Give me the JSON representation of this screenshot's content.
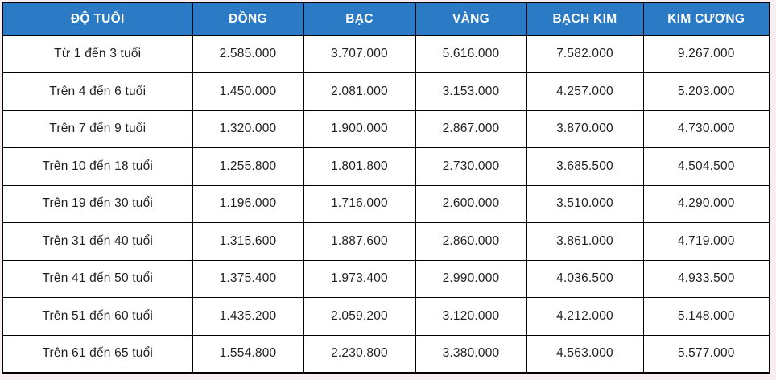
{
  "table": {
    "columns": [
      "ĐỘ TUỔI",
      "ĐỒNG",
      "BẠC",
      "VÀNG",
      "BẠCH KIM",
      "KIM CƯƠNG"
    ],
    "rows": [
      {
        "age": "Từ 1 đến 3 tuổi",
        "values": [
          "2.585.000",
          "3.707.000",
          "5.616.000",
          "7.582.000",
          "9.267.000"
        ]
      },
      {
        "age": "Trên 4 đến 6 tuổi",
        "values": [
          "1.450.000",
          "2.081.000",
          "3.153.000",
          "4.257.000",
          "5.203.000"
        ]
      },
      {
        "age": "Trên 7 đến 9 tuổi",
        "values": [
          "1.320.000",
          "1.900.000",
          "2.867.000",
          "3.870.000",
          "4.730.000"
        ]
      },
      {
        "age": "Trên 10 đến 18 tuổi",
        "values": [
          "1.255.800",
          "1.801.800",
          "2.730.000",
          "3.685.500",
          "4.504.500"
        ]
      },
      {
        "age": "Trên 19 đến 30 tuổi",
        "values": [
          "1.196.000",
          "1.716.000",
          "2.600.000",
          "3.510.000",
          "4.290.000"
        ]
      },
      {
        "age": "Trên 31 đến 40 tuổi",
        "values": [
          "1.315.600",
          "1.887.600",
          "2.860.000",
          "3.861.000",
          "4.719.000"
        ]
      },
      {
        "age": "Trên 41 đến 50 tuổi",
        "values": [
          "1.375.400",
          "1.973.400",
          "2.990.000",
          "4.036.500",
          "4.933.500"
        ]
      },
      {
        "age": "Trên 51 đến 60 tuổi",
        "values": [
          "1.435.200",
          "2.059.200",
          "3.120.000",
          "4.212.000",
          "5.148.000"
        ]
      },
      {
        "age": "Trên 61 đến 65 tuổi",
        "values": [
          "1.554.800",
          "2.230.800",
          "3.380.000",
          "4.563.000",
          "5.577.000"
        ]
      }
    ]
  },
  "colors": {
    "header_bg": "#2b7ac6",
    "header_text": "#ffffff",
    "cell_text": "#1f1f1f",
    "border": "#000000",
    "table_bg": "#ffffff",
    "page_bg": "#f6eef0"
  },
  "chart_data": {
    "type": "table",
    "title": "",
    "columns": [
      "ĐỘ TUỔI",
      "ĐỒNG",
      "BẠC",
      "VÀNG",
      "BẠCH KIM",
      "KIM CƯƠNG"
    ],
    "categories": [
      "Từ 1 đến 3 tuổi",
      "Trên 4 đến 6 tuổi",
      "Trên 7 đến 9 tuổi",
      "Trên 10 đến 18 tuổi",
      "Trên 19 đến 30 tuổi",
      "Trên 31 đến 40 tuổi",
      "Trên 41 đến 50 tuổi",
      "Trên 51 đến 60 tuổi",
      "Trên 61 đến 65 tuổi"
    ],
    "series": [
      {
        "name": "ĐỒNG",
        "values": [
          2585000,
          1450000,
          1320000,
          1255800,
          1196000,
          1315600,
          1375400,
          1435200,
          1554800
        ]
      },
      {
        "name": "BẠC",
        "values": [
          3707000,
          2081000,
          1900000,
          1801800,
          1716000,
          1887600,
          1973400,
          2059200,
          2230800
        ]
      },
      {
        "name": "VÀNG",
        "values": [
          5616000,
          3153000,
          2867000,
          2730000,
          2600000,
          2860000,
          2990000,
          3120000,
          3380000
        ]
      },
      {
        "name": "BẠCH KIM",
        "values": [
          7582000,
          4257000,
          3870000,
          3685500,
          3510000,
          3861000,
          4036500,
          4212000,
          4563000
        ]
      },
      {
        "name": "KIM CƯƠNG",
        "values": [
          9267000,
          5203000,
          4730000,
          4504500,
          4290000,
          4719000,
          4933500,
          5148000,
          5577000
        ]
      }
    ]
  }
}
